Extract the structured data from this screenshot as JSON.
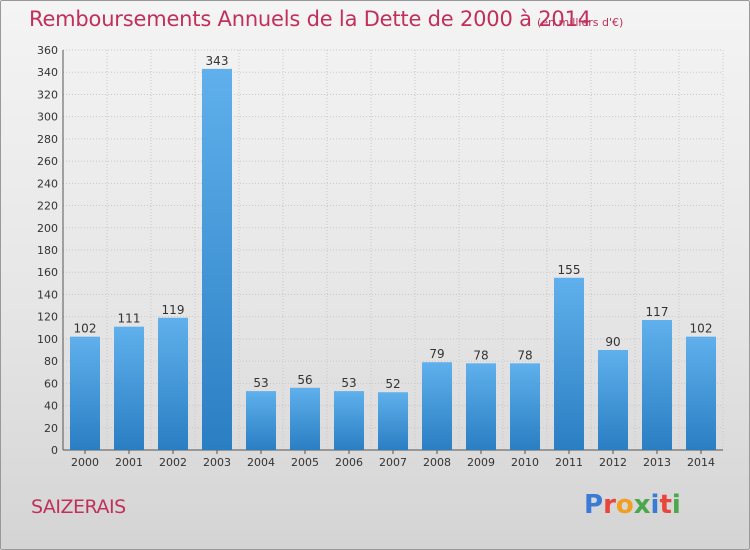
{
  "header": {
    "title": "Remboursements Annuels de la Dette de 2000 à 2014",
    "subtitle": "(en milliers d'€)"
  },
  "footer": {
    "town": "SAIZERAIS",
    "logo": "Proxiti",
    "logo_colors": [
      "#3a7bd5",
      "#e8463c",
      "#f0a020",
      "#4aa84a",
      "#3a7bd5",
      "#e8463c",
      "#4aa84a"
    ]
  },
  "colors": {
    "title": "#c0305a",
    "bar_light": "#5fb0ec",
    "bar_dark": "#2a7ec2"
  },
  "chart_data": {
    "type": "bar",
    "categories": [
      "2000",
      "2001",
      "2002",
      "2003",
      "2004",
      "2005",
      "2006",
      "2007",
      "2008",
      "2009",
      "2010",
      "2011",
      "2012",
      "2013",
      "2014"
    ],
    "values": [
      102,
      111,
      119,
      343,
      53,
      56,
      53,
      52,
      79,
      78,
      78,
      155,
      90,
      117,
      102
    ],
    "ylim": [
      0,
      360
    ],
    "yticks": [
      0,
      20,
      40,
      60,
      80,
      100,
      120,
      140,
      160,
      180,
      200,
      220,
      240,
      260,
      280,
      300,
      320,
      340,
      360
    ],
    "grid": true
  }
}
